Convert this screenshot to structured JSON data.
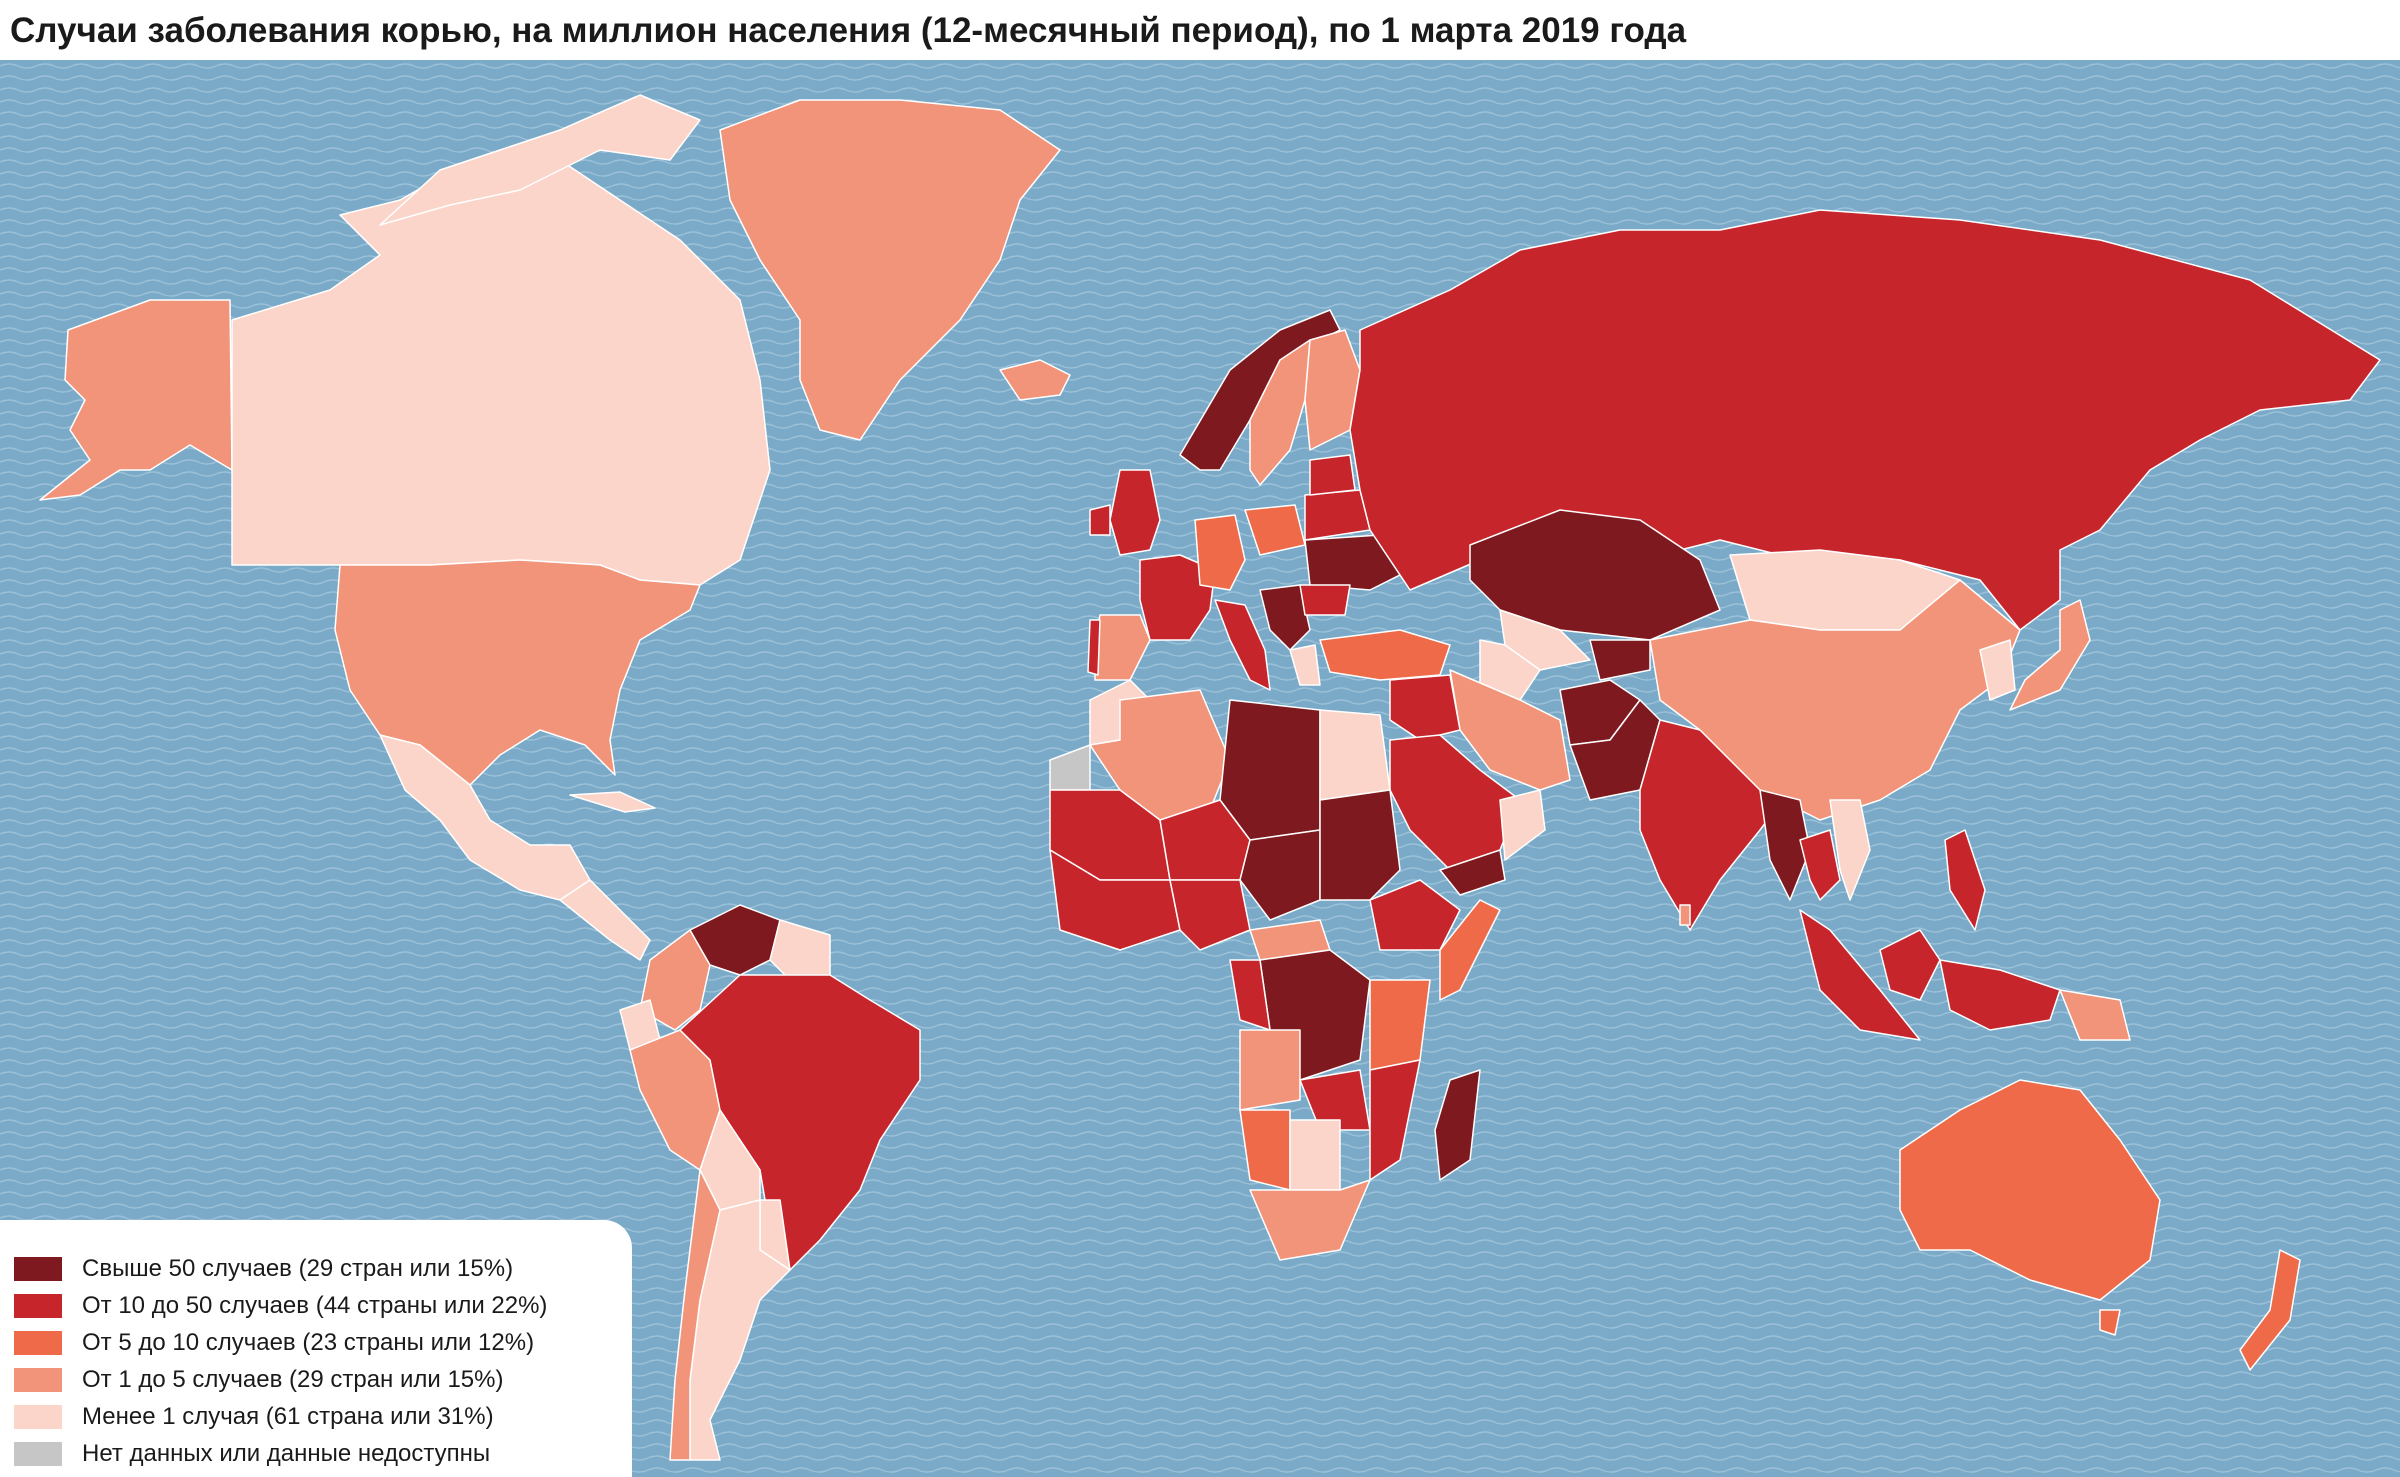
{
  "title": "Случаи заболевания корью, на миллион населения (12-месячный период), по 1 марта 2019 года",
  "colors": {
    "ocean": "#7aaac8",
    "ocean_wave": "#9cc1d8",
    "border": "#ffffff",
    "cat_over_50": "#7e1a1f",
    "cat_10_50": "#c6262b",
    "cat_5_10": "#ee6a48",
    "cat_1_5": "#f1947a",
    "cat_under_1": "#fbd5c9",
    "cat_no_data": "#c6c6c6",
    "other": "#6aa26a"
  },
  "legend": [
    {
      "label": "Свыше 50 случаев (29 стран или 15%)",
      "color": "#7e1a1f"
    },
    {
      "label": "От 10 до 50 случаев (44 страны или 22%)",
      "color": "#c6262b"
    },
    {
      "label": "От 5 до 10 случаев (23 страны или 12%)",
      "color": "#ee6a48"
    },
    {
      "label": "От 1 до 5 случаев (29 стран или 15%)",
      "color": "#f1947a"
    },
    {
      "label": "Менее 1 случая (61 страна или 31%)",
      "color": "#fbd5c9"
    },
    {
      "label": "Нет данных или данные недоступны",
      "color": "#c6c6c6"
    }
  ]
}
